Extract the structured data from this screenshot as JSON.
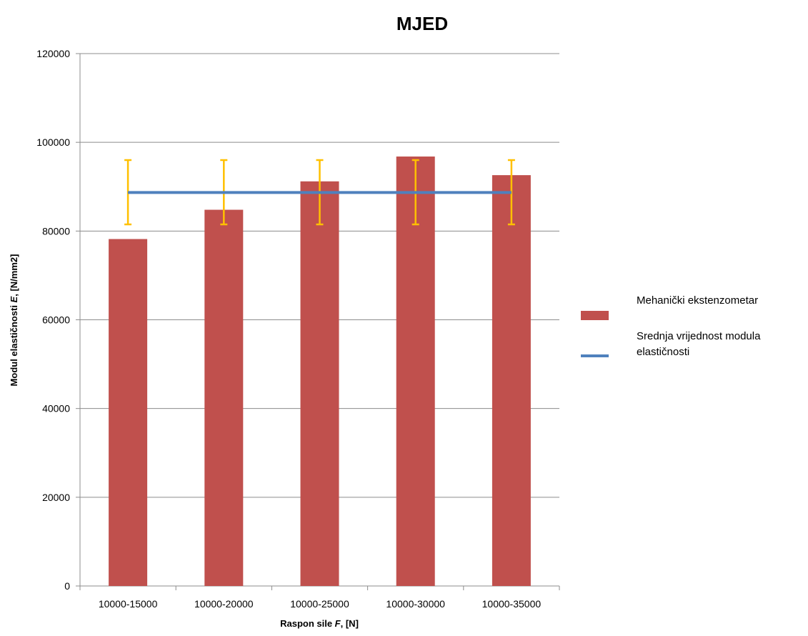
{
  "chart_data": {
    "type": "bar",
    "title": "MJED",
    "xlabel": {
      "main": "Raspon sile ",
      "italic": "F",
      "unit": ", [N]"
    },
    "ylabel": {
      "main": "Modul elastičnosti ",
      "italic": "E",
      "unit": ", [N/mm2]"
    },
    "categories": [
      "10000-15000",
      "10000-20000",
      "10000-25000",
      "10000-30000",
      "10000-35000"
    ],
    "ylim": [
      0,
      120000
    ],
    "yticks": [
      0,
      20000,
      40000,
      60000,
      80000,
      100000,
      120000
    ],
    "grid": true,
    "legend_position": "right",
    "series": [
      {
        "name": "Mehanički ekstenzometar",
        "kind": "bar",
        "color": "#c0504d",
        "values": [
          78200,
          84800,
          91200,
          96800,
          92600
        ],
        "error_low": [
          81500,
          81500,
          81500,
          81500,
          81500
        ],
        "error_high": [
          96000,
          96000,
          96000,
          96000,
          96000
        ],
        "error_color": "#ffc000"
      },
      {
        "name": "Srednja vrijednost modula elastičnosti",
        "name_lines": [
          "Srednja vrijednost modula",
          "elastičnosti"
        ],
        "kind": "line",
        "color": "#4f81bd",
        "values": [
          88700,
          88700,
          88700,
          88700,
          88700
        ]
      }
    ]
  }
}
